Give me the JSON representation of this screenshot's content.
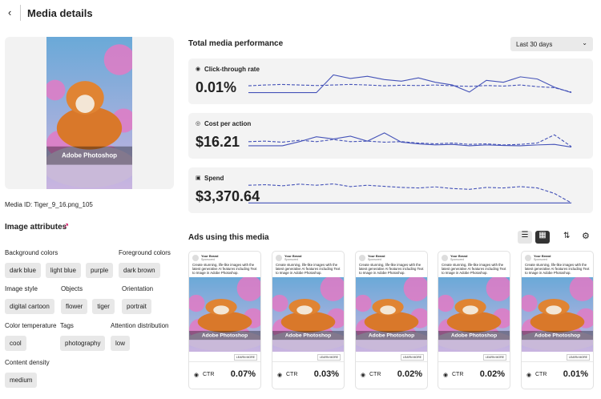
{
  "header": {
    "title": "Media details"
  },
  "media": {
    "image_text": "Adobe Photoshop",
    "media_id": "Media ID: Tiger_9_16.png_105"
  },
  "attributes": {
    "title": "Image attributes",
    "groups": [
      {
        "label": "Background colors",
        "chips": [
          "dark blue",
          "light blue",
          "purple"
        ]
      },
      {
        "label": "Foreground colors",
        "chips": [
          "dark brown"
        ]
      },
      {
        "label": "Image style",
        "chips": [
          "digital cartoon"
        ]
      },
      {
        "label": "Objects",
        "chips": [
          "flower",
          "tiger"
        ]
      },
      {
        "label": "Orientation",
        "chips": [
          "portrait"
        ]
      },
      {
        "label": "Color temperature",
        "chips": [
          "cool"
        ]
      },
      {
        "label": "Tags",
        "chips": [
          "photography"
        ]
      },
      {
        "label": "Attention distribution",
        "chips": [
          "low"
        ]
      },
      {
        "label": "Content density",
        "chips": [
          "medium"
        ]
      }
    ]
  },
  "performance": {
    "title": "Total media performance",
    "period": "Last 30 days",
    "metrics": [
      {
        "label": "Click-through rate",
        "value": "0.01%",
        "ylim": [
          0,
          100
        ],
        "solid": [
          10,
          10,
          10,
          10,
          10,
          75,
          62,
          70,
          58,
          52,
          64,
          48,
          38,
          12,
          55,
          48,
          68,
          60,
          30,
          10
        ],
        "dashed": [
          35,
          38,
          40,
          38,
          36,
          38,
          40,
          38,
          35,
          37,
          36,
          38,
          35,
          33,
          36,
          34,
          38,
          32,
          28,
          12
        ]
      },
      {
        "label": "Cost per action",
        "value": "$16.21",
        "ylim": [
          0,
          100
        ],
        "solid": [
          15,
          15,
          15,
          30,
          48,
          40,
          50,
          32,
          62,
          28,
          22,
          18,
          20,
          15,
          18,
          16,
          15,
          18,
          20,
          10
        ],
        "dashed": [
          30,
          32,
          28,
          35,
          30,
          38,
          30,
          32,
          28,
          30,
          25,
          22,
          25,
          20,
          22,
          18,
          20,
          25,
          55,
          12
        ]
      },
      {
        "label": "Spend",
        "value": "$3,370.64",
        "ylim": [
          0,
          100
        ],
        "solid": [
          5,
          5,
          5,
          5,
          5,
          5,
          5,
          5,
          5,
          5,
          5,
          5,
          5,
          5,
          5,
          5,
          5,
          5,
          5,
          5
        ],
        "dashed": [
          70,
          72,
          68,
          74,
          70,
          75,
          65,
          70,
          66,
          62,
          60,
          64,
          58,
          55,
          62,
          60,
          65,
          60,
          40,
          5
        ]
      }
    ]
  },
  "ads": {
    "title": "Ads using this media",
    "items": [
      {
        "brand": "Your Brand",
        "sponsored": "Sponsored",
        "copy": "Create stunning, life-like images with the latest generative AI features including Text to Image in Adobe Photoshop.",
        "image_text": "Adobe Photoshop",
        "cta": "LEARN MORE",
        "metric": "CTR",
        "value": "0.07%"
      },
      {
        "brand": "Your Brand",
        "sponsored": "Sponsored",
        "copy": "Create stunning, life-like images with the latest generative AI features including Text to Image in Adobe Photoshop.",
        "image_text": "Adobe Photoshop",
        "cta": "LEARN MORE",
        "metric": "CTR",
        "value": "0.03%"
      },
      {
        "brand": "Your Brand",
        "sponsored": "Sponsored",
        "copy": "Create stunning, life-like images with the latest generative AI features including Text to Image in Adobe Photoshop.",
        "image_text": "Adobe Photoshop",
        "cta": "LEARN MORE",
        "metric": "CTR",
        "value": "0.02%"
      },
      {
        "brand": "Your Brand",
        "sponsored": "Sponsored",
        "copy": "Create stunning, life-like images with the latest generative AI features including Text to Image in Adobe Photoshop.",
        "image_text": "Adobe Photoshop",
        "cta": "LEARN MORE",
        "metric": "CTR",
        "value": "0.02%"
      },
      {
        "brand": "Your Brand",
        "sponsored": "Sponsored",
        "copy": "Create stunning, life-like images with the latest generative AI features including Text to Image in Adobe Photoshop.",
        "image_text": "Adobe Photoshop",
        "cta": "LEARN MORE",
        "metric": "CTR",
        "value": "0.01%"
      }
    ]
  }
}
